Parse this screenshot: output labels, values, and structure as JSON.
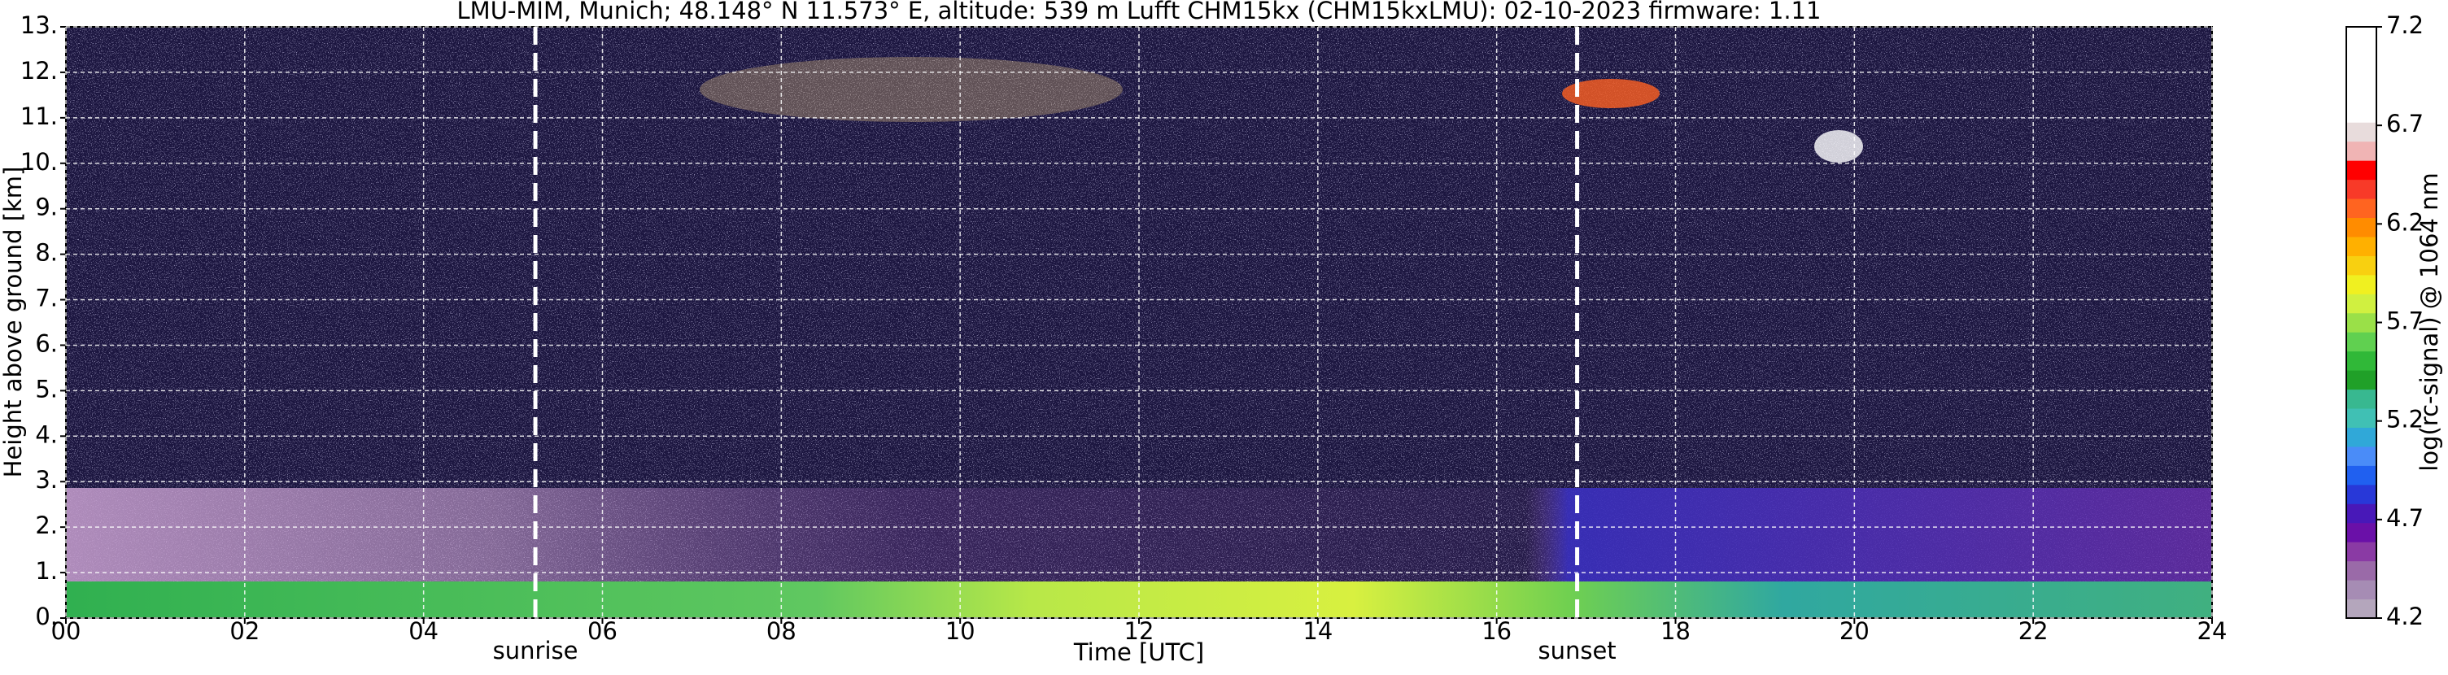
{
  "chart_data": {
    "type": "heatmap",
    "title": "LMU-MIM, Munich; 48.148° N 11.573° E, altitude: 539 m    Lufft CHM15kx (CHM15kxLMU): 02-10-2023    firmware: 1.11",
    "xlabel": "Time [UTC]",
    "ylabel": "Height above ground [km]",
    "xlim": [
      0,
      24
    ],
    "xticks": [
      {
        "value": 0,
        "label": "00"
      },
      {
        "value": 2,
        "label": "02"
      },
      {
        "value": 4,
        "label": "04"
      },
      {
        "value": 6,
        "label": "06"
      },
      {
        "value": 8,
        "label": "08"
      },
      10,
      12,
      14,
      16,
      18,
      20,
      22,
      24
    ],
    "ylim": [
      0,
      13
    ],
    "yticks": [
      {
        "value": 0,
        "label": "0."
      },
      {
        "value": 1,
        "label": "1."
      },
      {
        "value": 2,
        "label": "2."
      },
      {
        "value": 3,
        "label": "3."
      },
      {
        "value": 4,
        "label": "4."
      },
      {
        "value": 5,
        "label": "5."
      },
      {
        "value": 6,
        "label": "6."
      },
      {
        "value": 7,
        "label": "7."
      },
      {
        "value": 8,
        "label": "8."
      },
      {
        "value": 9,
        "label": "9."
      },
      {
        "value": 10,
        "label": "10."
      },
      {
        "value": 11,
        "label": "11."
      },
      {
        "value": 12,
        "label": "12."
      },
      {
        "value": 13,
        "label": "13."
      }
    ],
    "grid": true,
    "annotations": [
      {
        "text": "sunrise",
        "x": 5.25
      },
      {
        "text": "sunset",
        "x": 16.9
      }
    ],
    "colorbar": {
      "label": "log(rc-signal) @ 1064 nm",
      "lim": [
        4.2,
        7.2
      ],
      "ticks": [
        4.2,
        4.7,
        5.2,
        5.7,
        6.2,
        6.7,
        7.2
      ],
      "colors": [
        "#b4a6bc",
        "#a68cb4",
        "#9a6aa8",
        "#8a3aa4",
        "#6a10a8",
        "#4818b8",
        "#2838d8",
        "#2060f0",
        "#4a8cf8",
        "#30a8d8",
        "#40c0b4",
        "#38b890",
        "#20a028",
        "#30b838",
        "#60d050",
        "#9ae048",
        "#d0f040",
        "#f0f020",
        "#f8d010",
        "#ffb000",
        "#ff8c00",
        "#ff6420",
        "#f83a28",
        "#ff0000",
        "#f0b4b4",
        "#e8dcdc",
        "#ffffff",
        "#ffffff",
        "#ffffff",
        "#ffffff",
        "#ffffff"
      ]
    }
  }
}
